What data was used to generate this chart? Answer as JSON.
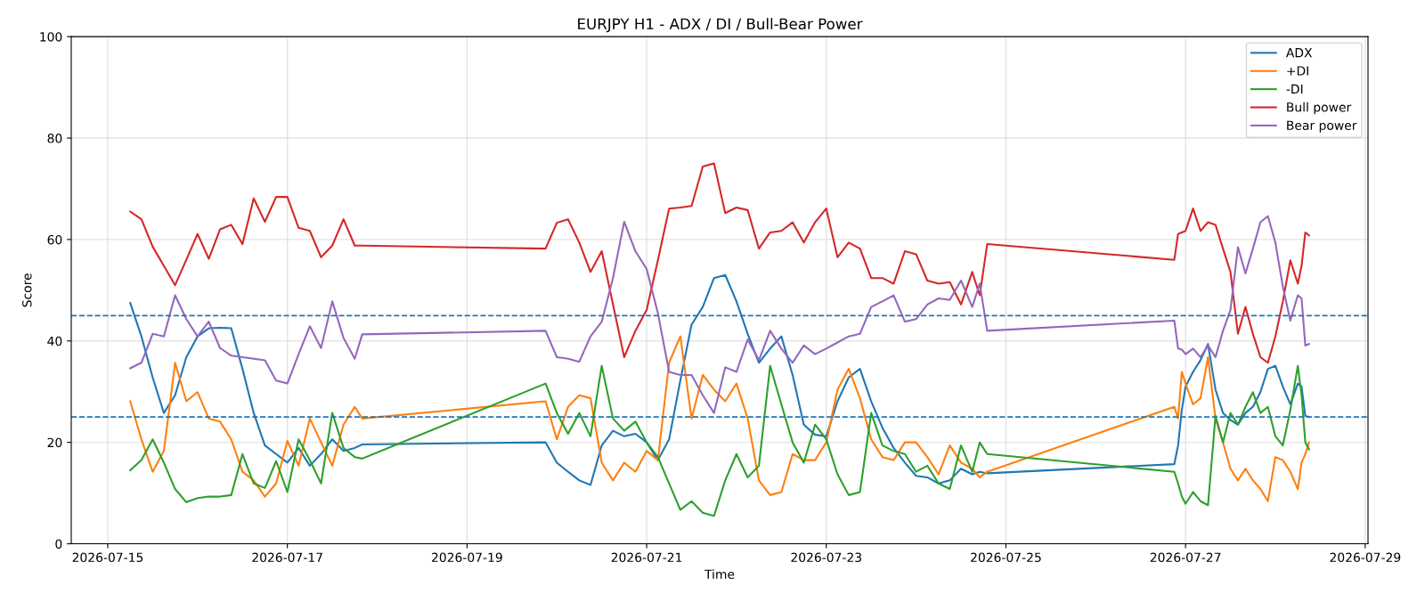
{
  "chart_data": {
    "type": "line",
    "title": "EURJPY H1 - ADX / DI / Bull-Bear Power",
    "xlabel": "Time",
    "ylabel": "Score",
    "x": [
      "2026-07-15T06:00",
      "2026-07-15T09:00",
      "2026-07-15T12:00",
      "2026-07-15T15:00",
      "2026-07-15T18:00",
      "2026-07-15T21:00",
      "2026-07-16T00:00",
      "2026-07-16T03:00",
      "2026-07-16T06:00",
      "2026-07-16T09:00",
      "2026-07-16T12:00",
      "2026-07-16T15:00",
      "2026-07-16T18:00",
      "2026-07-16T21:00",
      "2026-07-17T00:00",
      "2026-07-17T03:00",
      "2026-07-17T06:00",
      "2026-07-17T09:00",
      "2026-07-17T12:00",
      "2026-07-17T15:00",
      "2026-07-17T18:00",
      "2026-07-17T20:00",
      "2026-07-19T21:00",
      "2026-07-20T00:00",
      "2026-07-20T03:00",
      "2026-07-20T06:00",
      "2026-07-20T09:00",
      "2026-07-20T12:00",
      "2026-07-20T15:00",
      "2026-07-20T18:00",
      "2026-07-20T21:00",
      "2026-07-21T00:00",
      "2026-07-21T03:00",
      "2026-07-21T06:00",
      "2026-07-21T09:00",
      "2026-07-21T12:00",
      "2026-07-21T15:00",
      "2026-07-21T18:00",
      "2026-07-21T21:00",
      "2026-07-22T00:00",
      "2026-07-22T03:00",
      "2026-07-22T06:00",
      "2026-07-22T09:00",
      "2026-07-22T12:00",
      "2026-07-22T15:00",
      "2026-07-22T18:00",
      "2026-07-22T21:00",
      "2026-07-23T00:00",
      "2026-07-23T03:00",
      "2026-07-23T06:00",
      "2026-07-23T09:00",
      "2026-07-23T12:00",
      "2026-07-23T15:00",
      "2026-07-23T18:00",
      "2026-07-23T21:00",
      "2026-07-24T00:00",
      "2026-07-24T03:00",
      "2026-07-24T06:00",
      "2026-07-24T09:00",
      "2026-07-24T12:00",
      "2026-07-24T15:00",
      "2026-07-24T17:00",
      "2026-07-24T19:00",
      "2026-07-26T21:00",
      "2026-07-26T22:00",
      "2026-07-26T23:00",
      "2026-07-27T00:00",
      "2026-07-27T02:00",
      "2026-07-27T04:00",
      "2026-07-27T06:00",
      "2026-07-27T08:00",
      "2026-07-27T10:00",
      "2026-07-27T12:00",
      "2026-07-27T14:00",
      "2026-07-27T16:00",
      "2026-07-27T18:00",
      "2026-07-27T20:00",
      "2026-07-27T22:00",
      "2026-07-28T00:00",
      "2026-07-28T02:00",
      "2026-07-28T04:00",
      "2026-07-28T06:00",
      "2026-07-28T07:00",
      "2026-07-28T08:00",
      "2026-07-28T09:00"
    ],
    "series": [
      {
        "name": "ADX",
        "color": "#1f77b4",
        "values": [
          47.5,
          40.9,
          32.8,
          25.8,
          29.3,
          36.8,
          40.9,
          42.5,
          42.6,
          42.5,
          34.5,
          25.8,
          19.4,
          17.7,
          16,
          18.9,
          15.4,
          17.7,
          20.6,
          18.3,
          18.9,
          19.6,
          20,
          16,
          14.2,
          12.5,
          11.6,
          19.4,
          22.3,
          21.2,
          21.7,
          20,
          16.5,
          20.6,
          32.2,
          43.2,
          46.7,
          52.4,
          53,
          47.8,
          41.4,
          35.7,
          38.5,
          40.9,
          33.3,
          23.5,
          21.5,
          21.2,
          28.1,
          32.8,
          34.5,
          28.1,
          22.9,
          18.9,
          16,
          13.4,
          13.1,
          11.9,
          12.5,
          14.8,
          13.7,
          14.2,
          13.9,
          15.7,
          19.4,
          26.4,
          31,
          33.9,
          36.2,
          39.4,
          30.4,
          25.8,
          24.4,
          23.5,
          25.8,
          27,
          29.9,
          34.5,
          35.1,
          31,
          27.5,
          31.6,
          31,
          25.2,
          25
        ]
      },
      {
        "name": "+DI",
        "color": "#ff7f0e",
        "values": [
          28.1,
          20.6,
          14.2,
          18.3,
          35.7,
          28.1,
          29.9,
          24.7,
          24.1,
          20.6,
          14.2,
          12.5,
          9.3,
          11.9,
          20.3,
          15.4,
          24.7,
          20,
          15.4,
          23.5,
          27,
          24.7,
          28.1,
          20.6,
          27,
          29.3,
          28.7,
          16,
          12.5,
          16,
          14.2,
          18.3,
          16.5,
          35.7,
          40.9,
          24.7,
          33.3,
          30.4,
          28.1,
          31.6,
          24.7,
          12.5,
          9.6,
          10.2,
          17.7,
          16.5,
          16.5,
          20,
          30.4,
          34.5,
          28.7,
          20.6,
          17.1,
          16.5,
          20,
          20,
          17.1,
          13.7,
          19.4,
          16,
          14.8,
          13.1,
          14.2,
          27,
          24.7,
          33.9,
          31.6,
          27.5,
          28.7,
          36.8,
          24.7,
          20,
          14.8,
          12.5,
          14.8,
          12.5,
          10.8,
          8.4,
          17.1,
          16.5,
          14.2,
          10.8,
          16,
          17.7,
          20
        ]
      },
      {
        "name": "-DI",
        "color": "#2ca02c",
        "values": [
          14.5,
          16.5,
          20.6,
          16,
          10.8,
          8.2,
          9,
          9.3,
          9.3,
          9.6,
          17.7,
          11.9,
          11,
          16.3,
          10.2,
          20.6,
          16.5,
          11.9,
          25.8,
          18.9,
          17.1,
          16.8,
          31.6,
          25.8,
          21.7,
          25.8,
          21.2,
          35.1,
          24.7,
          22.3,
          24.1,
          20,
          17.1,
          11.9,
          6.7,
          8.4,
          6.1,
          5.5,
          12.5,
          17.7,
          13.1,
          15.4,
          35.1,
          27.5,
          20,
          16,
          23.5,
          20.6,
          13.7,
          9.6,
          10.2,
          25.8,
          19.4,
          18.3,
          17.7,
          14.2,
          15.4,
          11.9,
          10.8,
          19.4,
          14.2,
          20,
          17.7,
          14.2,
          11.9,
          9.3,
          7.9,
          10.2,
          8.4,
          7.6,
          25.2,
          20,
          25.8,
          23.5,
          27,
          29.9,
          25.8,
          27,
          21.2,
          19.4,
          26.4,
          35.1,
          29.3,
          20,
          18.6
        ]
      },
      {
        "name": "Bull power",
        "color": "#d62728",
        "values": [
          65.5,
          64,
          58.6,
          54.8,
          51,
          56,
          61.1,
          56.2,
          62,
          62.9,
          59.1,
          68.1,
          63.5,
          68.4,
          68.4,
          62.3,
          61.7,
          56.5,
          58.8,
          64,
          58.8,
          58.8,
          58.2,
          63.3,
          64,
          59.4,
          53.6,
          57.7,
          47.2,
          36.8,
          42,
          46.1,
          55.9,
          66.1,
          66.3,
          66.6,
          74.4,
          75,
          65.2,
          66.3,
          65.8,
          58.2,
          61.4,
          61.7,
          63.4,
          59.4,
          63.4,
          66.1,
          56.5,
          59.4,
          58.2,
          52.4,
          52.4,
          51.3,
          57.7,
          57.1,
          51.9,
          51.3,
          51.6,
          47.2,
          53.6,
          49,
          59.1,
          56,
          61.1,
          61.4,
          61.7,
          66.1,
          61.7,
          63.4,
          62.9,
          58.2,
          53.6,
          41.4,
          46.7,
          41.4,
          36.8,
          35.7,
          40.9,
          47.8,
          55.9,
          51.3,
          54.8,
          61.4,
          60.8
        ]
      },
      {
        "name": "Bear power",
        "color": "#9467bd",
        "values": [
          34.6,
          35.7,
          41.4,
          40.9,
          49,
          44.3,
          40.9,
          43.8,
          38.6,
          37.1,
          36.8,
          36.5,
          36.2,
          32.2,
          31.6,
          37.4,
          42.9,
          38.6,
          47.8,
          40.6,
          36.5,
          41.3,
          42,
          36.8,
          36.5,
          35.9,
          40.9,
          43.8,
          52.4,
          63.5,
          57.7,
          54.2,
          45.5,
          33.9,
          33.3,
          33.3,
          29.3,
          25.8,
          34.8,
          33.9,
          40.3,
          36.2,
          42,
          38.5,
          35.7,
          39.1,
          37.4,
          38.5,
          39.7,
          40.9,
          41.4,
          46.7,
          47.8,
          49,
          43.8,
          44.3,
          47.2,
          48.4,
          48.1,
          51.9,
          46.7,
          51.3,
          42,
          44,
          38.5,
          38.3,
          37.4,
          38.5,
          36.8,
          39.1,
          36.8,
          42,
          46.1,
          58.5,
          53.3,
          58.2,
          63.4,
          64.6,
          59.4,
          50.7,
          44,
          49,
          48.4,
          39.1,
          39.4
        ]
      }
    ],
    "xlim": [
      "2026-07-14T14:15",
      "2026-07-29T00:45"
    ],
    "xticks": [
      "2026-07-15",
      "2026-07-17",
      "2026-07-19",
      "2026-07-21",
      "2026-07-23",
      "2026-07-25",
      "2026-07-27",
      "2026-07-29"
    ],
    "ylim": [
      0,
      100
    ],
    "yticks": [
      0,
      20,
      40,
      60,
      80,
      100
    ],
    "ref_lines": [
      {
        "axis": "y",
        "value": 45,
        "color": "#1f77b4",
        "line_style": "dashed"
      },
      {
        "axis": "y",
        "value": 25,
        "color": "#1f77b4",
        "line_style": "dashed"
      }
    ],
    "grid": true,
    "legend": "top right",
    "line_style": "solid",
    "marker": "none"
  }
}
